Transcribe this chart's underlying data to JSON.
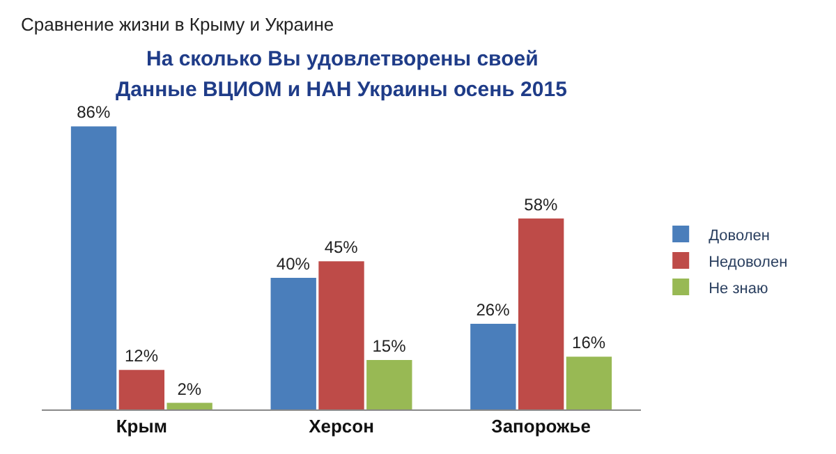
{
  "chart_data": {
    "type": "bar",
    "title": "Сравнение жизни в Крыму и Украине",
    "subtitle": "На сколько Вы удовлетворены своей\nДанные ВЦИОМ и НАН Украины осень 2015",
    "categories": [
      "Крым",
      "Херсон",
      "Запорожье"
    ],
    "series": [
      {
        "name": "Доволен",
        "color": "#4a7ebb",
        "values": [
          86,
          40,
          26
        ],
        "value_labels": [
          "86%",
          "40%",
          "26%"
        ]
      },
      {
        "name": "Недоволен",
        "color": "#be4b48",
        "values": [
          12,
          45,
          58
        ],
        "value_labels": [
          "12%",
          "45%",
          "58%"
        ]
      },
      {
        "name": "Не знаю",
        "color": "#98b954",
        "values": [
          2,
          15,
          16
        ],
        "value_labels": [
          "2%",
          "15%",
          "16%"
        ]
      }
    ],
    "legend": "right"
  }
}
